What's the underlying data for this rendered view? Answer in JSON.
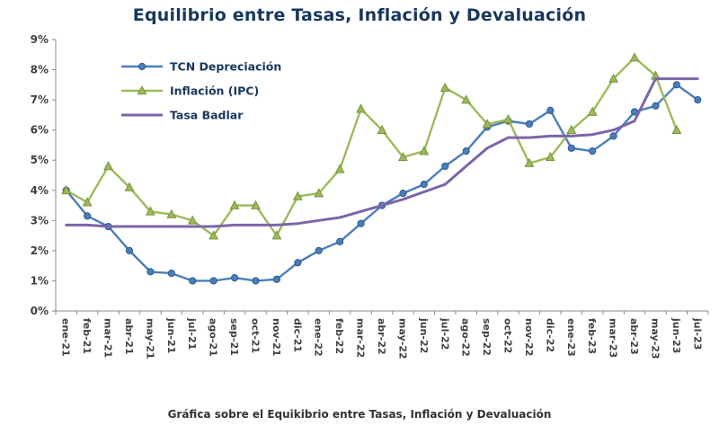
{
  "title": "Equilibrio entre Tasas, Inflación y Devaluación",
  "caption": "Gráfica sobre el Equikibrio entre Tasas, Inflación y Devaluación",
  "chart_data": {
    "type": "line",
    "title": "Equilibrio entre Tasas, Inflación y Devaluación",
    "xlabel": "",
    "ylabel": "",
    "ylim": [
      0,
      9
    ],
    "yticks": [
      0,
      1,
      2,
      3,
      4,
      5,
      6,
      7,
      8,
      9
    ],
    "ytick_format": "percent",
    "grid": false,
    "legend_position": "top-left-inside",
    "legend_text_color": "#17375E",
    "axis_color": "#8a8a8a",
    "label_color": "#404040",
    "categories": [
      "ene-21",
      "feb-21",
      "mar-21",
      "abr-21",
      "may-21",
      "jun-21",
      "jul-21",
      "ago-21",
      "sep-21",
      "oct-21",
      "nov-21",
      "dic-21",
      "ene-22",
      "feb-22",
      "mar-22",
      "abr-22",
      "may-22",
      "jun-22",
      "jul-22",
      "ago-22",
      "sep-22",
      "oct-22",
      "nov-22",
      "dic-22",
      "ene-23",
      "feb-23",
      "mar-23",
      "abr-23",
      "may-23",
      "jun-23",
      "jul-23"
    ],
    "series": [
      {
        "name": "TCN Depreciación",
        "color": "#4a7ebb",
        "edge": "#2e5a8c",
        "marker": "circle",
        "values": [
          4.0,
          3.15,
          2.8,
          2.0,
          1.3,
          1.25,
          1.0,
          1.0,
          1.1,
          1.0,
          1.05,
          1.6,
          2.0,
          2.3,
          2.9,
          3.5,
          3.9,
          4.2,
          4.8,
          5.3,
          6.1,
          6.3,
          6.2,
          6.65,
          5.4,
          5.3,
          5.8,
          6.6,
          6.8,
          7.5,
          7.0
        ]
      },
      {
        "name": "Inflación (IPC)",
        "color": "#9bbb59",
        "edge": "#77933c",
        "marker": "triangle",
        "values": [
          4.0,
          3.6,
          4.8,
          4.1,
          3.3,
          3.2,
          3.0,
          2.5,
          3.5,
          3.5,
          2.5,
          3.8,
          3.9,
          4.7,
          6.7,
          6.0,
          5.1,
          5.3,
          7.4,
          7.0,
          6.2,
          6.35,
          4.9,
          5.1,
          6.0,
          6.6,
          7.7,
          8.4,
          7.8,
          6.0,
          null
        ]
      },
      {
        "name": "Tasa Badlar",
        "color": "#7c65a9",
        "edge": "#60457f",
        "marker": "none",
        "values": [
          2.85,
          2.85,
          2.8,
          2.8,
          2.8,
          2.8,
          2.8,
          2.8,
          2.85,
          2.85,
          2.85,
          2.9,
          3.0,
          3.1,
          3.3,
          3.5,
          3.7,
          3.95,
          4.2,
          4.8,
          5.4,
          5.75,
          5.75,
          5.8,
          5.8,
          5.85,
          6.0,
          6.3,
          7.7,
          7.7,
          7.7
        ]
      }
    ]
  }
}
